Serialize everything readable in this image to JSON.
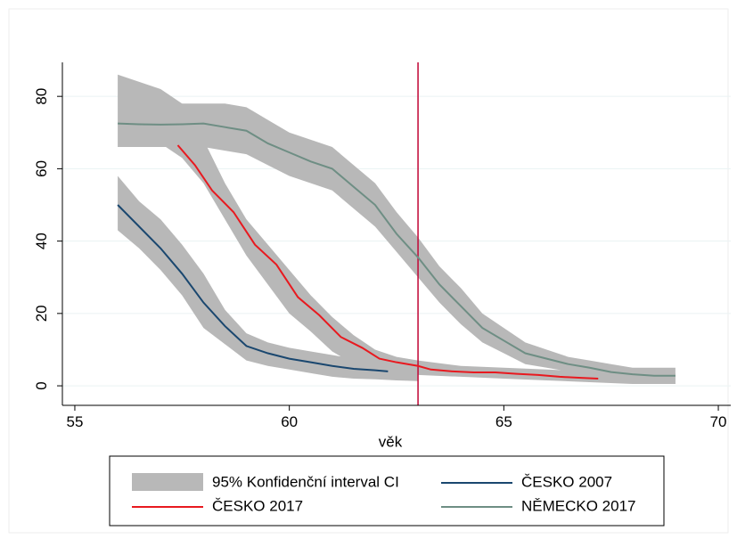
{
  "chart_data": {
    "type": "line",
    "xlabel": "věk",
    "xlim": [
      54.71,
      70.29
    ],
    "xticks": [
      55,
      60,
      65,
      70
    ],
    "ylim": [
      -5.4,
      89.4
    ],
    "yticks": [
      0,
      20,
      40,
      60,
      80
    ],
    "grid": true,
    "vline": {
      "x": 63,
      "color": "#c10534"
    },
    "band_name": "95% Konfidenční interval CI",
    "band_color": "#b8b8b8",
    "bands": [
      {
        "x": [
          56,
          56.5,
          57,
          57.5,
          58,
          58.5,
          59,
          59.5,
          60,
          60.5,
          61,
          61.5,
          62,
          62.5,
          63
        ],
        "upper": [
          58,
          51,
          46,
          39,
          31,
          21,
          14.5,
          12,
          10.5,
          9.5,
          8.5,
          7.5,
          6.5,
          6,
          5.5
        ],
        "lower": [
          43,
          38,
          32,
          25,
          16,
          11.5,
          7,
          5.5,
          4.5,
          3.5,
          2.5,
          2,
          1.8,
          1.5,
          1.3
        ]
      },
      {
        "x": [
          57,
          57.5,
          58,
          58.5,
          59,
          59.5,
          60,
          60.5,
          61,
          61.5,
          62,
          62.5,
          63,
          64,
          65,
          66,
          67,
          68,
          69
        ],
        "upper": [
          78,
          78,
          68,
          56,
          46,
          39,
          32,
          25,
          19,
          14,
          10,
          8,
          7,
          5.5,
          5,
          4.5,
          4,
          3.5,
          3.5
        ],
        "lower": [
          67,
          63,
          56,
          46,
          36,
          28,
          20,
          15,
          9.5,
          6,
          4.5,
          3.5,
          3,
          2.5,
          2,
          1.5,
          1,
          0.5,
          0.5
        ]
      },
      {
        "x": [
          56,
          56.5,
          57,
          57.5,
          58,
          58.5,
          59,
          59.5,
          60,
          60.5,
          61,
          61.5,
          62,
          62.5,
          63,
          63.5,
          64,
          64.5,
          65,
          65.5,
          66,
          66.5,
          67,
          67.5,
          68,
          68.5,
          69
        ],
        "upper": [
          86,
          84,
          82,
          78,
          78,
          78,
          77,
          73.5,
          70,
          68,
          66,
          61,
          56,
          48,
          41,
          33,
          27,
          20,
          16,
          12,
          10,
          8,
          7,
          6,
          5,
          5,
          5
        ],
        "lower": [
          66,
          66,
          66,
          66,
          66,
          65,
          64,
          61,
          58,
          56,
          54,
          49,
          44,
          37,
          30,
          23,
          17,
          12,
          9,
          6,
          5,
          4,
          3,
          2,
          1,
          0.5,
          0.5
        ]
      }
    ],
    "series": [
      {
        "name": "ČESKO 2007",
        "color": "#1a476f",
        "x": [
          56,
          56.5,
          57,
          57.5,
          58,
          58.5,
          59,
          59.5,
          60,
          60.5,
          61,
          61.5,
          62,
          62.3
        ],
        "values": [
          50,
          44,
          38,
          31,
          23,
          16.5,
          11,
          9,
          7.5,
          6.5,
          5.5,
          4.7,
          4.3,
          4
        ]
      },
      {
        "name": "ČESKO 2017",
        "color": "#e8191f",
        "x": [
          57.4,
          57.8,
          58.2,
          58.7,
          59.2,
          59.7,
          60.2,
          60.7,
          61.2,
          61.7,
          62.1,
          62.5,
          63,
          63.3,
          63.8,
          64.3,
          64.8,
          65.3,
          65.8,
          66.3,
          66.8,
          67.2
        ],
        "values": [
          66.5,
          61,
          54,
          48,
          39,
          33.5,
          24.5,
          19.5,
          13.5,
          10.5,
          7.5,
          6.5,
          5.5,
          4.5,
          4,
          3.7,
          3.7,
          3.3,
          3,
          2.5,
          2.2,
          2
        ]
      },
      {
        "name": "NĚMECKO 2017",
        "color": "#6e8e84",
        "x": [
          56,
          56.5,
          57,
          57.5,
          58,
          58.5,
          59,
          59.5,
          60,
          60.5,
          61,
          61.5,
          62,
          62.5,
          63,
          63.5,
          64,
          64.5,
          65,
          65.5,
          66,
          66.5,
          67,
          67.5,
          68,
          68.5,
          69
        ],
        "values": [
          72.5,
          72.3,
          72.2,
          72.3,
          72.5,
          71.5,
          70.5,
          67,
          64.5,
          62,
          60,
          55,
          50,
          42,
          35.5,
          28,
          22,
          16,
          12.5,
          9,
          7.5,
          6,
          5,
          3.8,
          3.2,
          2.8,
          2.8
        ]
      }
    ]
  }
}
